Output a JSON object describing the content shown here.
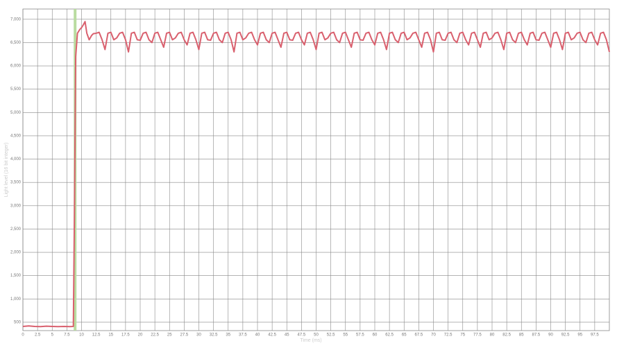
{
  "chart_data": {
    "type": "line",
    "x_label": "Time (ms)",
    "y_label": "Light level (16 bit integer)",
    "xlim": [
      0,
      100
    ],
    "ylim": [
      320,
      7220
    ],
    "xticks": [
      0,
      2.5,
      5,
      7.5,
      10,
      12.5,
      15,
      17.5,
      20,
      22.5,
      25,
      27.5,
      30,
      32.5,
      35,
      37.5,
      40,
      42.5,
      45,
      47.5,
      50,
      52.5,
      55,
      57.5,
      60,
      62.5,
      65,
      67.5,
      70,
      72.5,
      75,
      77.5,
      80,
      82.5,
      85,
      87.5,
      90,
      92.5,
      95,
      97.5
    ],
    "yticks": [
      500,
      {
        "value": 1000,
        "label": "1,000"
      },
      {
        "value": 1500,
        "label": "1,500"
      },
      {
        "value": 2000,
        "label": "2,000"
      },
      {
        "value": 2500,
        "label": "2,500"
      },
      {
        "value": 3000,
        "label": "3,000"
      },
      {
        "value": 3500,
        "label": "3,500"
      },
      {
        "value": 4000,
        "label": "4,000"
      },
      {
        "value": 4500,
        "label": "4,500"
      },
      {
        "value": 5000,
        "label": "5,000"
      },
      {
        "value": 5500,
        "label": "5,500"
      },
      {
        "value": 6000,
        "label": "6,000"
      },
      {
        "value": 6500,
        "label": "6,500"
      },
      {
        "value": 7000,
        "label": "7,000"
      }
    ],
    "grid": true,
    "vline": {
      "x": 8.9,
      "color": "#b9dca0"
    },
    "x": [
      0,
      1,
      2,
      3,
      4,
      5,
      6,
      7,
      8,
      8.6,
      8.8,
      9,
      9.3,
      9.7,
      10,
      10.3,
      10.6,
      10.9,
      11.3,
      11.7,
      12,
      12.5,
      13,
      13.5,
      14,
      14.5,
      15,
      15.5,
      16,
      16.5,
      17,
      17.5,
      18,
      18.5,
      19,
      19.5,
      20,
      20.5,
      21,
      21.5,
      22,
      22.5,
      23,
      23.5,
      24,
      24.5,
      25,
      25.5,
      26,
      26.5,
      27,
      27.5,
      28,
      28.5,
      29,
      29.5,
      30,
      30.5,
      31,
      31.5,
      32,
      32.5,
      33,
      33.5,
      34,
      34.5,
      35,
      35.5,
      36,
      36.5,
      37,
      37.5,
      38,
      38.5,
      39,
      39.5,
      40,
      40.5,
      41,
      41.5,
      42,
      42.5,
      43,
      43.5,
      44,
      44.5,
      45,
      45.5,
      46,
      46.5,
      47,
      47.5,
      48,
      48.5,
      49,
      49.5,
      50,
      50.5,
      51,
      51.5,
      52,
      52.5,
      53,
      53.5,
      54,
      54.5,
      55,
      55.5,
      56,
      56.5,
      57,
      57.5,
      58,
      58.5,
      59,
      59.5,
      60,
      60.5,
      61,
      61.5,
      62,
      62.5,
      63,
      63.5,
      64,
      64.5,
      65,
      65.5,
      66,
      66.5,
      67,
      67.5,
      68,
      68.5,
      69,
      69.5,
      70,
      70.5,
      71,
      71.5,
      72,
      72.5,
      73,
      73.5,
      74,
      74.5,
      75,
      75.5,
      76,
      76.5,
      77,
      77.5,
      78,
      78.5,
      79,
      79.5,
      80,
      80.5,
      81,
      81.5,
      82,
      82.5,
      83,
      83.5,
      84,
      84.5,
      85,
      85.5,
      86,
      86.5,
      87,
      87.5,
      88,
      88.5,
      89,
      89.5,
      90,
      90.5,
      91,
      91.5,
      92,
      92.5,
      93,
      93.5,
      94,
      94.5,
      95,
      95.5,
      96,
      96.5,
      97,
      97.5,
      98,
      98.5,
      99,
      99.5,
      100
    ],
    "series": [
      {
        "name": "Light level",
        "color": "#d9606e",
        "values": [
          410,
          420,
          410,
          405,
          415,
          410,
          405,
          410,
          405,
          410,
          3000,
          6200,
          6700,
          6780,
          6820,
          6880,
          6950,
          6700,
          6560,
          6650,
          6690,
          6700,
          6720,
          6560,
          6350,
          6700,
          6720,
          6560,
          6600,
          6700,
          6720,
          6560,
          6300,
          6700,
          6720,
          6560,
          6550,
          6700,
          6720,
          6560,
          6500,
          6700,
          6720,
          6560,
          6400,
          6700,
          6720,
          6560,
          6600,
          6700,
          6720,
          6560,
          6450,
          6700,
          6720,
          6560,
          6350,
          6700,
          6720,
          6560,
          6550,
          6700,
          6720,
          6560,
          6500,
          6700,
          6720,
          6560,
          6300,
          6700,
          6720,
          6560,
          6600,
          6700,
          6720,
          6560,
          6450,
          6700,
          6720,
          6560,
          6500,
          6700,
          6720,
          6560,
          6400,
          6700,
          6720,
          6560,
          6550,
          6700,
          6720,
          6560,
          6450,
          6700,
          6720,
          6560,
          6350,
          6700,
          6720,
          6560,
          6600,
          6700,
          6720,
          6560,
          6500,
          6700,
          6720,
          6560,
          6400,
          6700,
          6720,
          6560,
          6550,
          6700,
          6720,
          6560,
          6450,
          6700,
          6720,
          6560,
          6350,
          6700,
          6720,
          6560,
          6500,
          6700,
          6720,
          6560,
          6600,
          6700,
          6720,
          6560,
          6400,
          6700,
          6720,
          6560,
          6300,
          6700,
          6720,
          6560,
          6550,
          6700,
          6720,
          6560,
          6500,
          6700,
          6720,
          6560,
          6450,
          6700,
          6720,
          6560,
          6400,
          6700,
          6720,
          6560,
          6600,
          6700,
          6720,
          6560,
          6350,
          6700,
          6720,
          6560,
          6500,
          6700,
          6720,
          6560,
          6450,
          6700,
          6720,
          6560,
          6550,
          6700,
          6720,
          6560,
          6400,
          6700,
          6720,
          6560,
          6350,
          6700,
          6720,
          6560,
          6600,
          6700,
          6720,
          6560,
          6500,
          6700,
          6720,
          6560,
          6450,
          6700,
          6720,
          6560,
          6300
        ]
      }
    ]
  }
}
